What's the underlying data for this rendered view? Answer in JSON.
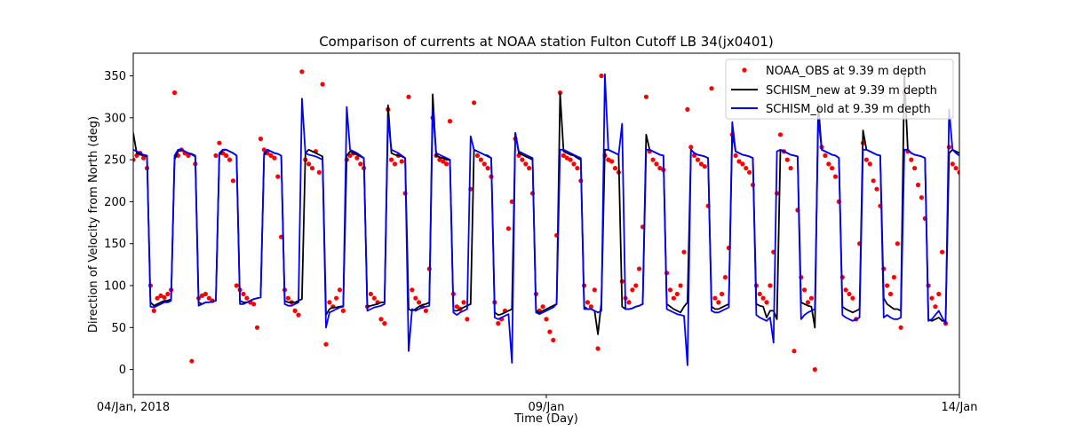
{
  "chart_data": {
    "type": "line",
    "title": "Comparison of currents at NOAA station Fulton Cutoff LB 34(jx0401)",
    "xlabel": "Time (Day)",
    "ylabel": "Direction of Velocity from North (deg)",
    "xlim": [
      "2018-01-04 00:00",
      "2018-01-14 00:00"
    ],
    "ylim": [
      -30,
      377
    ],
    "x_ticks": [
      {
        "time": "2018-01-04 00:00",
        "label": "04/Jan, 2018"
      },
      {
        "time": "2018-01-09 00:00",
        "label": "09/Jan"
      },
      {
        "time": "2018-01-14 00:00",
        "label": "14/Jan"
      }
    ],
    "y_ticks": [
      0,
      50,
      100,
      150,
      200,
      250,
      300,
      350
    ],
    "grid": false,
    "legend_position": "top-right",
    "x_start": "2018-01-04 00:00",
    "x_step_hours": 1,
    "series": [
      {
        "name": "NOAA_OBS at 9.39 m depth",
        "style": "markers",
        "color": "#ff0000",
        "values": [
          250,
          255,
          258,
          252,
          240,
          100,
          70,
          85,
          88,
          86,
          90,
          95,
          330,
          255,
          262,
          258,
          255,
          10,
          245,
          85,
          88,
          90,
          85,
          82,
          255,
          270,
          258,
          255,
          250,
          225,
          100,
          95,
          90,
          85,
          80,
          78,
          50,
          275,
          262,
          258,
          255,
          252,
          230,
          158,
          95,
          85,
          80,
          70,
          65,
          355,
          250,
          245,
          240,
          260,
          235,
          340,
          30,
          80,
          75,
          85,
          95,
          70,
          250,
          255,
          258,
          252,
          245,
          240,
          75,
          90,
          85,
          80,
          60,
          55,
          310,
          250,
          245,
          255,
          248,
          210,
          325,
          95,
          85,
          80,
          75,
          70,
          120,
          300,
          255,
          250,
          248,
          245,
          296,
          90,
          75,
          72,
          80,
          60,
          215,
          318,
          255,
          250,
          245,
          240,
          230,
          80,
          55,
          60,
          70,
          168,
          200,
          275,
          255,
          250,
          245,
          240,
          210,
          90,
          70,
          75,
          60,
          45,
          35,
          160,
          330,
          255,
          252,
          250,
          245,
          240,
          225,
          100,
          80,
          75,
          95,
          25,
          350,
          255,
          250,
          248,
          240,
          235,
          105,
          85,
          80,
          95,
          100,
          120,
          170,
          325,
          260,
          250,
          245,
          240,
          238,
          115,
          95,
          85,
          90,
          100,
          140,
          310,
          265,
          255,
          250,
          245,
          242,
          195,
          335,
          85,
          80,
          90,
          110,
          145,
          280,
          255,
          248,
          245,
          240,
          235,
          220,
          100,
          90,
          85,
          80,
          100,
          140,
          210,
          280,
          260,
          250,
          240,
          22,
          190,
          110,
          95,
          80,
          85,
          0,
          310,
          265,
          255,
          245,
          240,
          230,
          200,
          110,
          95,
          90,
          85,
          60,
          150,
          270,
          250,
          245,
          225,
          215,
          195,
          120,
          100,
          90,
          110,
          150,
          50,
          330,
          260,
          250,
          240,
          220,
          205,
          180,
          100,
          85,
          75,
          90,
          140,
          55,
          265,
          245,
          240,
          235
        ]
      },
      {
        "name": "SCHISM_new at 9.39 m depth",
        "style": "line",
        "color": "#000000",
        "values": [
          282,
          258,
          256,
          255,
          254,
          80,
          76,
          78,
          80,
          82,
          82,
          84,
          250,
          260,
          262,
          260,
          258,
          257,
          255,
          80,
          78,
          80,
          80,
          81,
          82,
          255,
          262,
          262,
          260,
          258,
          255,
          82,
          80,
          80,
          82,
          84,
          85,
          86,
          255,
          262,
          260,
          258,
          257,
          255,
          82,
          80,
          80,
          80,
          82,
          84,
          258,
          262,
          260,
          258,
          256,
          254,
          65,
          72,
          74,
          74,
          75,
          76,
          255,
          260,
          258,
          256,
          254,
          252,
          75,
          76,
          77,
          78,
          80,
          80,
          315,
          258,
          256,
          255,
          254,
          252,
          72,
          70,
          72,
          75,
          77,
          78,
          80,
          328,
          255,
          253,
          252,
          250,
          250,
          70,
          70,
          72,
          74,
          76,
          78,
          262,
          260,
          258,
          256,
          255,
          252,
          68,
          65,
          66,
          68,
          70,
          72,
          282,
          258,
          256,
          254,
          252,
          250,
          70,
          68,
          70,
          72,
          74,
          76,
          78,
          329,
          260,
          258,
          256,
          255,
          252,
          250,
          75,
          72,
          72,
          70,
          42,
          80,
          262,
          262,
          260,
          258,
          256,
          75,
          72,
          72,
          73,
          75,
          76,
          78,
          280,
          262,
          260,
          258,
          256,
          255,
          78,
          75,
          72,
          70,
          68,
          75,
          80,
          262,
          258,
          256,
          255,
          254,
          252,
          75,
          72,
          72,
          74,
          76,
          78,
          282,
          260,
          258,
          256,
          255,
          254,
          252,
          78,
          76,
          75,
          62,
          70,
          70,
          60,
          262,
          260,
          258,
          256,
          255,
          254,
          80,
          78,
          76,
          75,
          50,
          316,
          262,
          260,
          258,
          256,
          255,
          252,
          75,
          72,
          70,
          68,
          70,
          72,
          285,
          262,
          260,
          258,
          256,
          255,
          85,
          78,
          75,
          72,
          72,
          70,
          352,
          262,
          258,
          256,
          255,
          254,
          252,
          60,
          58,
          60,
          62,
          58,
          58,
          258,
          262,
          260,
          258
        ]
      },
      {
        "name": "SCHISM_old at 9.39 m depth",
        "style": "line",
        "color": "#0000ff",
        "values": [
          262,
          260,
          258,
          256,
          255,
          75,
          74,
          76,
          78,
          80,
          80,
          82,
          255,
          262,
          262,
          260,
          258,
          256,
          254,
          76,
          78,
          80,
          80,
          81,
          82,
          258,
          262,
          262,
          260,
          258,
          255,
          78,
          78,
          80,
          82,
          84,
          85,
          86,
          258,
          262,
          260,
          258,
          257,
          255,
          78,
          76,
          76,
          78,
          80,
          323,
          258,
          256,
          255,
          254,
          252,
          250,
          50,
          68,
          70,
          72,
          74,
          75,
          313,
          262,
          260,
          258,
          255,
          252,
          70,
          72,
          74,
          75,
          76,
          78,
          300,
          262,
          260,
          258,
          255,
          252,
          22,
          72,
          70,
          72,
          74,
          75,
          76,
          310,
          258,
          256,
          254,
          252,
          250,
          68,
          65,
          68,
          70,
          72,
          278,
          262,
          260,
          258,
          256,
          254,
          252,
          62,
          60,
          62,
          64,
          66,
          8,
          282,
          260,
          258,
          256,
          254,
          252,
          68,
          66,
          68,
          70,
          72,
          74,
          78,
          262,
          262,
          260,
          258,
          256,
          254,
          252,
          72,
          72,
          72,
          70,
          68,
          70,
          352,
          262,
          260,
          258,
          256,
          293,
          72,
          72,
          73,
          75,
          76,
          78,
          262,
          262,
          260,
          258,
          256,
          255,
          72,
          70,
          68,
          66,
          65,
          64,
          5,
          262,
          258,
          256,
          255,
          254,
          252,
          70,
          68,
          68,
          70,
          72,
          74,
          295,
          260,
          258,
          256,
          255,
          254,
          252,
          65,
          62,
          60,
          58,
          62,
          32,
          260,
          262,
          260,
          258,
          256,
          255,
          254,
          60,
          65,
          68,
          70,
          72,
          300,
          262,
          260,
          258,
          256,
          255,
          252,
          65,
          62,
          60,
          58,
          60,
          62,
          262,
          262,
          260,
          258,
          256,
          255,
          62,
          65,
          62,
          60,
          60,
          62,
          262,
          262,
          258,
          256,
          255,
          254,
          252,
          58,
          60,
          65,
          70,
          62,
          55,
          310,
          262,
          258,
          255
        ]
      }
    ]
  }
}
